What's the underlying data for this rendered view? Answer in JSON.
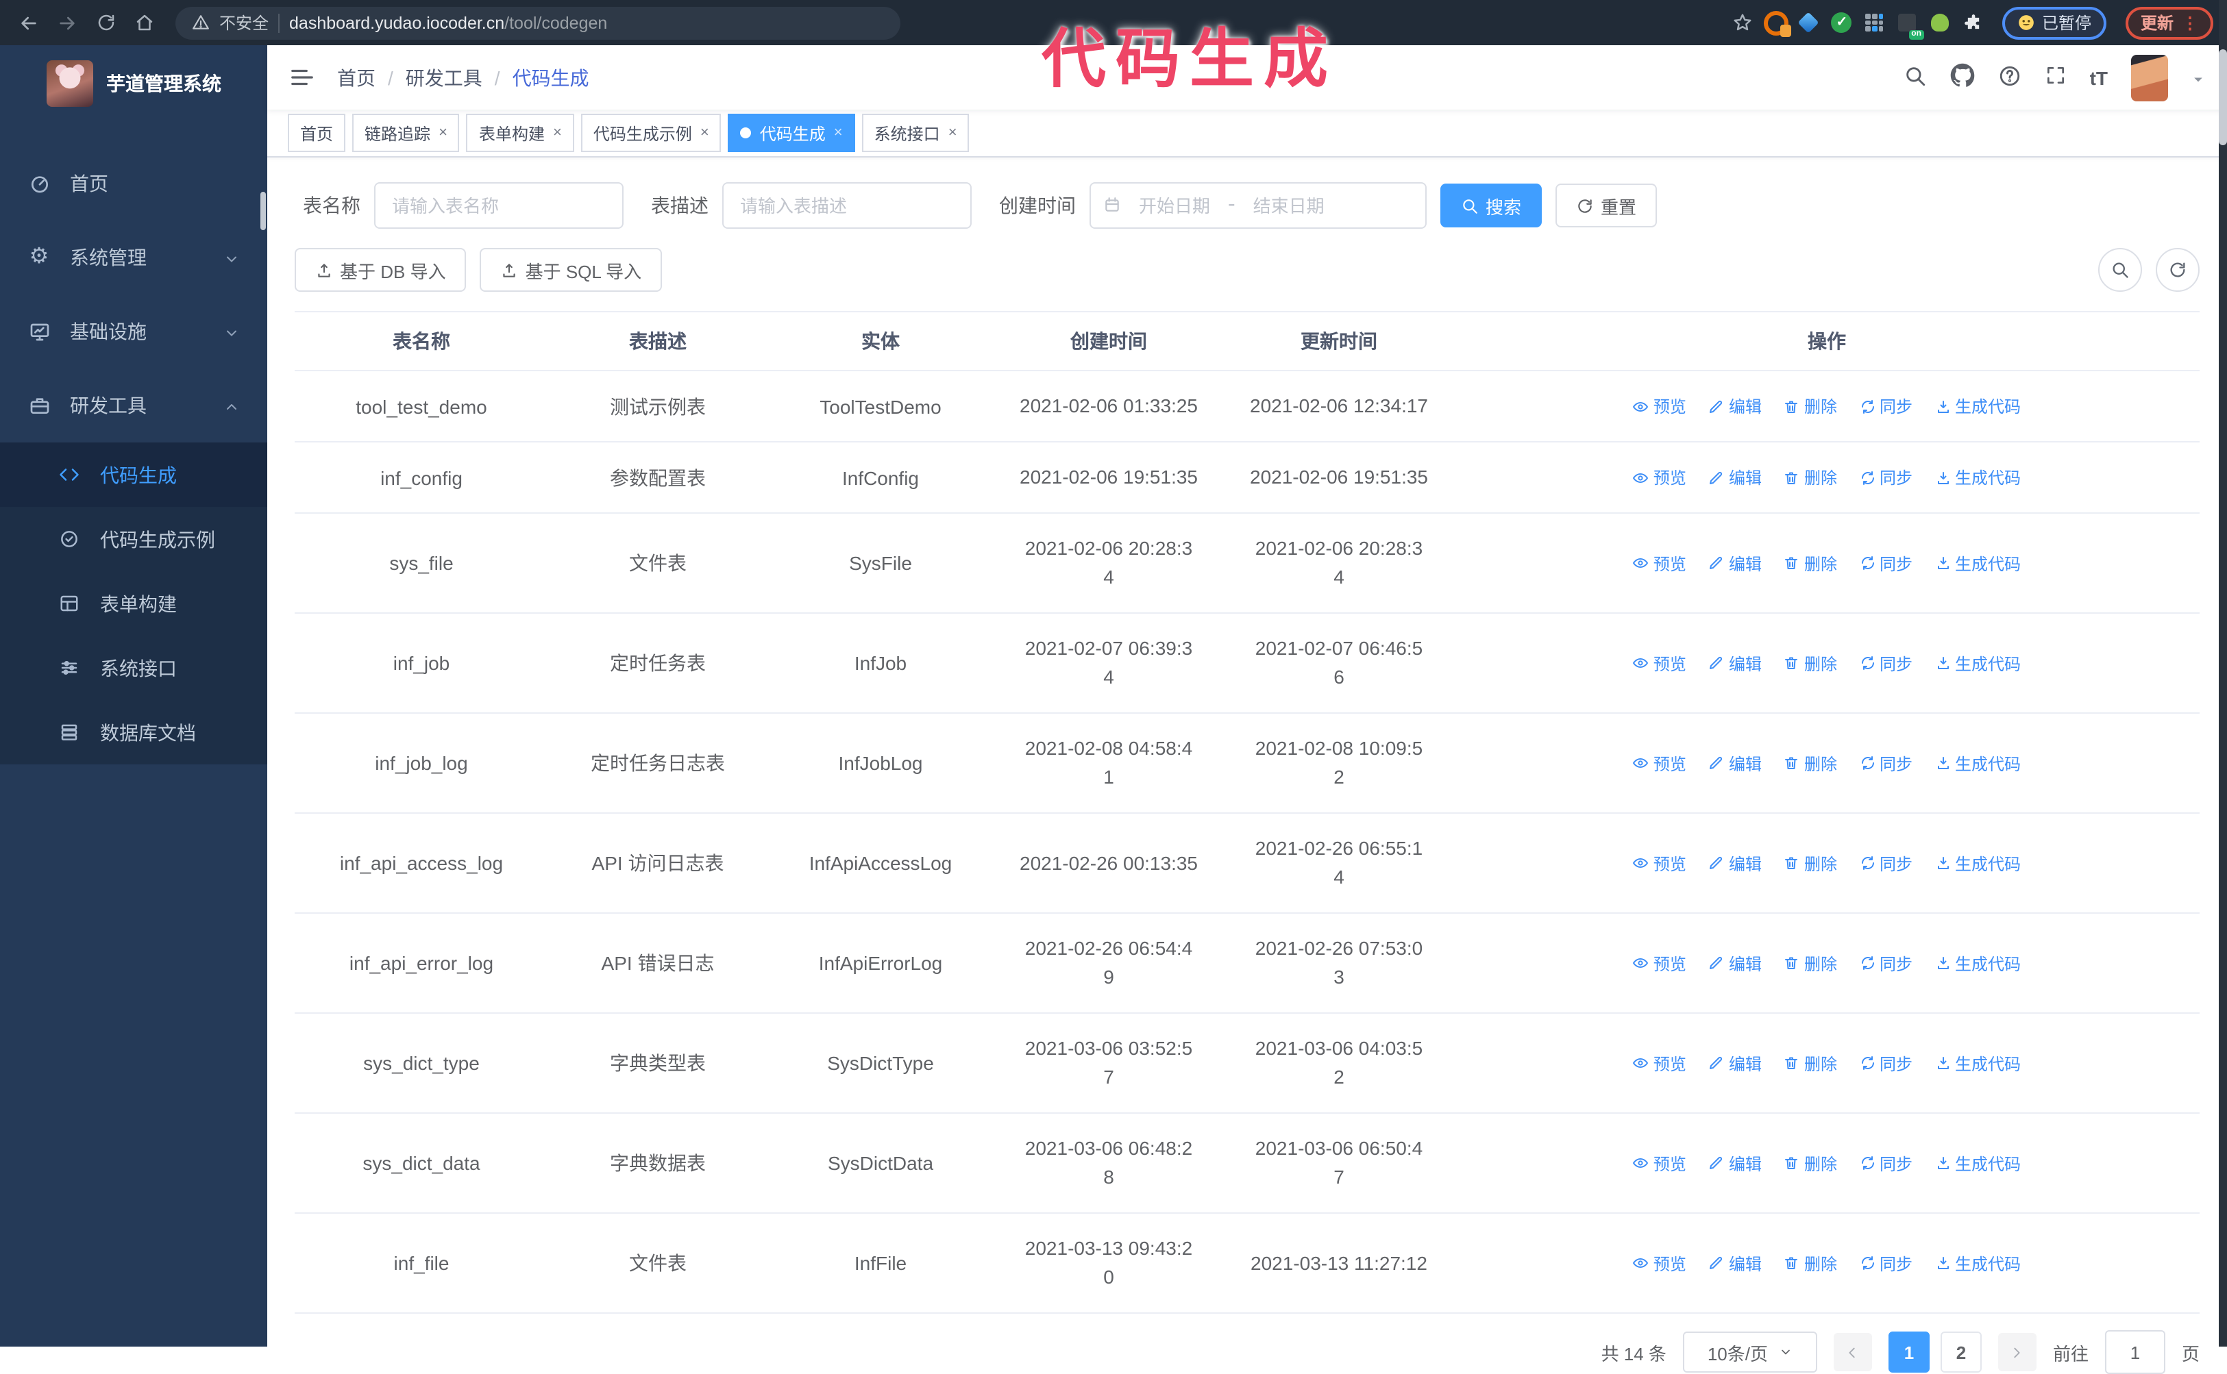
{
  "browser": {
    "security_label": "不安全",
    "url_host": "dashboard.yudao.iocoder.cn",
    "url_path": "/tool/codegen",
    "extensions": [
      "star-icon",
      "orange-ring-extension-icon",
      "blue-gem-extension-icon",
      "green-check-extension-icon",
      "grid-extension-icon",
      "dark-on-extension-icon",
      "green-person-extension-icon",
      "puzzle-extension-icon"
    ],
    "on_badge": "on",
    "paused_label": "已暂停",
    "update_label": "更新",
    "update_menu": "⋮"
  },
  "annotation": {
    "text": "代码生成",
    "color": "#ee4566"
  },
  "sidebar": {
    "title": "芋道管理系统",
    "items": [
      {
        "label": "首页",
        "icon": "dashboard-icon",
        "expandable": false
      },
      {
        "label": "系统管理",
        "icon": "gear-icon",
        "expandable": true,
        "state": "collapsed"
      },
      {
        "label": "基础设施",
        "icon": "monitor-icon",
        "expandable": true,
        "state": "collapsed"
      },
      {
        "label": "研发工具",
        "icon": "toolbox-icon",
        "expandable": true,
        "state": "expanded"
      }
    ],
    "submenu": [
      {
        "label": "代码生成",
        "icon": "code-icon",
        "active": true
      },
      {
        "label": "代码生成示例",
        "icon": "badge-check-icon",
        "active": false
      },
      {
        "label": "表单构建",
        "icon": "form-icon",
        "active": false
      },
      {
        "label": "系统接口",
        "icon": "sliders-icon",
        "active": false
      },
      {
        "label": "数据库文档",
        "icon": "database-icon",
        "active": false
      }
    ]
  },
  "header": {
    "breadcrumb": [
      "首页",
      "研发工具",
      "代码生成"
    ]
  },
  "tabs": [
    {
      "label": "首页",
      "closable": false,
      "active": false
    },
    {
      "label": "链路追踪",
      "closable": true,
      "active": false
    },
    {
      "label": "表单构建",
      "closable": true,
      "active": false
    },
    {
      "label": "代码生成示例",
      "closable": true,
      "active": false
    },
    {
      "label": "代码生成",
      "closable": true,
      "active": true
    },
    {
      "label": "系统接口",
      "closable": true,
      "active": false
    }
  ],
  "filters": {
    "table_name_label": "表名称",
    "table_name_placeholder": "请输入表名称",
    "table_desc_label": "表描述",
    "table_desc_placeholder": "请输入表描述",
    "create_time_label": "创建时间",
    "start_placeholder": "开始日期",
    "range_separator": "-",
    "end_placeholder": "结束日期",
    "search_label": "搜索",
    "reset_label": "重置"
  },
  "toolbar": {
    "import_db_label": "基于 DB 导入",
    "import_sql_label": "基于 SQL 导入"
  },
  "table": {
    "columns": [
      "表名称",
      "表描述",
      "实体",
      "创建时间",
      "更新时间",
      "操作"
    ],
    "actions": [
      {
        "key": "preview",
        "label": "预览"
      },
      {
        "key": "edit",
        "label": "编辑"
      },
      {
        "key": "delete",
        "label": "删除"
      },
      {
        "key": "sync",
        "label": "同步"
      },
      {
        "key": "generate",
        "label": "生成代码"
      }
    ],
    "rows": [
      {
        "name": "tool_test_demo",
        "desc": "测试示例表",
        "entity": "ToolTestDemo",
        "created": "2021-02-06 01:33:25",
        "updated": "2021-02-06 12:34:17"
      },
      {
        "name": "inf_config",
        "desc": "参数配置表",
        "entity": "InfConfig",
        "created": "2021-02-06 19:51:35",
        "updated": "2021-02-06 19:51:35"
      },
      {
        "name": "sys_file",
        "desc": "文件表",
        "entity": "SysFile",
        "created": "2021-02-06 20:28:3\n4",
        "updated": "2021-02-06 20:28:3\n4"
      },
      {
        "name": "inf_job",
        "desc": "定时任务表",
        "entity": "InfJob",
        "created": "2021-02-07 06:39:3\n4",
        "updated": "2021-02-07 06:46:5\n6"
      },
      {
        "name": "inf_job_log",
        "desc": "定时任务日志表",
        "entity": "InfJobLog",
        "created": "2021-02-08 04:58:4\n1",
        "updated": "2021-02-08 10:09:5\n2"
      },
      {
        "name": "inf_api_access_log",
        "desc": "API 访问日志表",
        "entity": "InfApiAccessLog",
        "created": "2021-02-26 00:13:35",
        "updated": "2021-02-26 06:55:1\n4"
      },
      {
        "name": "inf_api_error_log",
        "desc": "API 错误日志",
        "entity": "InfApiErrorLog",
        "created": "2021-02-26 06:54:4\n9",
        "updated": "2021-02-26 07:53:0\n3"
      },
      {
        "name": "sys_dict_type",
        "desc": "字典类型表",
        "entity": "SysDictType",
        "created": "2021-03-06 03:52:5\n7",
        "updated": "2021-03-06 04:03:5\n2"
      },
      {
        "name": "sys_dict_data",
        "desc": "字典数据表",
        "entity": "SysDictData",
        "created": "2021-03-06 06:48:2\n8",
        "updated": "2021-03-06 06:50:4\n7"
      },
      {
        "name": "inf_file",
        "desc": "文件表",
        "entity": "InfFile",
        "created": "2021-03-13 09:43:2\n0",
        "updated": "2021-03-13 11:27:12"
      }
    ]
  },
  "pagination": {
    "total_label": "共 14 条",
    "page_size_label": "10条/页",
    "pages": [
      "1",
      "2"
    ],
    "active_page": "1",
    "goto_label": "前往",
    "goto_value": "1",
    "goto_suffix": "页"
  },
  "colors": {
    "accent_blue": "#409eff",
    "sidebar_bg": "#253a58",
    "submenu_bg": "#1d2f47",
    "browser_bar_bg": "#212b37",
    "annotation_pink": "#ee4566"
  }
}
